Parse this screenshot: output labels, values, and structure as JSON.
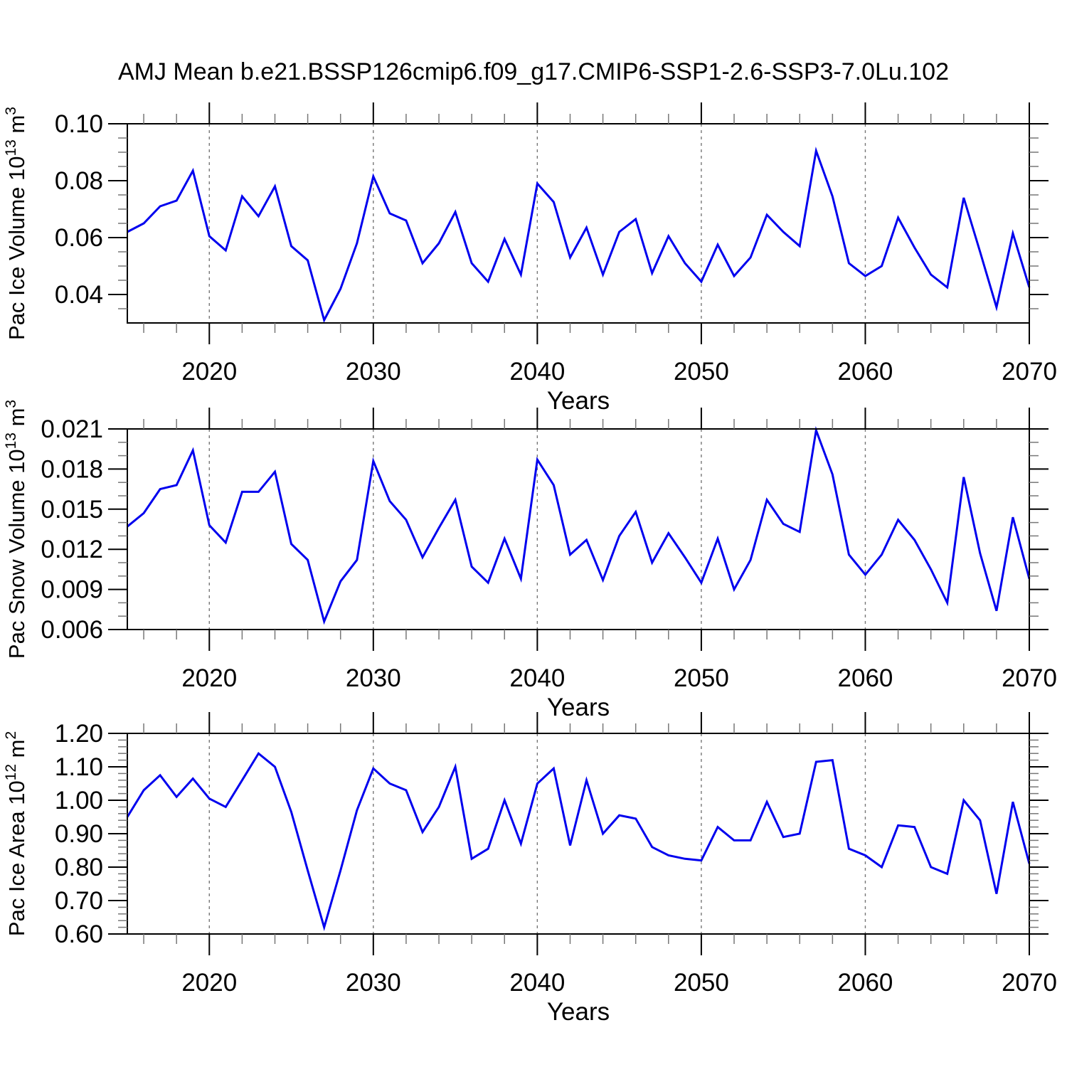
{
  "title": "AMJ Mean b.e21.BSSP126cmip6.f09_g17.CMIP6-SSP1-2.6-SSP3-7.0Lu.102",
  "style": {
    "line_color": "#0000ee",
    "frame_color": "#000000",
    "major_tick_color": "#000000",
    "minor_tick_color": "#777777",
    "gridline_color": "#777777",
    "background": "#ffffff"
  },
  "x_axis": {
    "label": "Years",
    "range": [
      2015,
      2070
    ],
    "major_ticks": [
      2020,
      2030,
      2040,
      2050,
      2060,
      2070
    ],
    "major_tick_labels": [
      "2020",
      "2030",
      "2040",
      "2050",
      "2060",
      "2070"
    ],
    "minor_tick_step": 2,
    "gridline_years": [
      2020,
      2030,
      2040,
      2050,
      2060
    ]
  },
  "chart_data": [
    {
      "type": "line",
      "id": "pac-ice-volume",
      "ylabel_text": "Pac Ice Volume 10^13 m^3",
      "ylabel_segments": [
        [
          "Pac Ice Volume 10",
          false
        ],
        [
          "13",
          true
        ],
        [
          " m",
          false
        ],
        [
          "3",
          true
        ]
      ],
      "xlabel": "Years",
      "x_range": [
        2015,
        2070
      ],
      "ylim": [
        0.03,
        0.1
      ],
      "ytick_values": [
        0.04,
        0.06,
        0.08,
        0.1
      ],
      "ytick_labels": [
        "0.04",
        "0.06",
        "0.08",
        "0.10"
      ],
      "y_minor_step": 0.005,
      "grid": "x-dashed",
      "legend": "none",
      "years": [
        2015,
        2016,
        2017,
        2018,
        2019,
        2020,
        2021,
        2022,
        2023,
        2024,
        2025,
        2026,
        2027,
        2028,
        2029,
        2030,
        2031,
        2032,
        2033,
        2034,
        2035,
        2036,
        2037,
        2038,
        2039,
        2040,
        2041,
        2042,
        2043,
        2044,
        2045,
        2046,
        2047,
        2048,
        2049,
        2050,
        2051,
        2052,
        2053,
        2054,
        2055,
        2056,
        2057,
        2058,
        2059,
        2060,
        2061,
        2062,
        2063,
        2064,
        2065,
        2066,
        2067,
        2068,
        2069,
        2070
      ],
      "values": [
        0.062,
        0.065,
        0.071,
        0.073,
        0.0835,
        0.0605,
        0.0555,
        0.0745,
        0.0675,
        0.078,
        0.057,
        0.052,
        0.031,
        0.042,
        0.058,
        0.0815,
        0.0685,
        0.066,
        0.051,
        0.058,
        0.069,
        0.051,
        0.0445,
        0.0595,
        0.047,
        0.079,
        0.0725,
        0.053,
        0.0635,
        0.047,
        0.062,
        0.0665,
        0.0475,
        0.0605,
        0.051,
        0.0445,
        0.0575,
        0.0465,
        0.053,
        0.068,
        0.062,
        0.057,
        0.0905,
        0.0745,
        0.051,
        0.0465,
        0.05,
        0.067,
        0.0565,
        0.047,
        0.0425,
        0.074,
        0.055,
        0.0355,
        0.0615,
        0.0425
      ]
    },
    {
      "type": "line",
      "id": "pac-snow-volume",
      "ylabel_text": "Pac Snow Volume 10^13 m^3",
      "ylabel_segments": [
        [
          "Pac Snow Volume 10",
          false
        ],
        [
          "13",
          true
        ],
        [
          " m",
          false
        ],
        [
          "3",
          true
        ]
      ],
      "xlabel": "Years",
      "x_range": [
        2015,
        2070
      ],
      "ylim": [
        0.006,
        0.021
      ],
      "ytick_values": [
        0.006,
        0.009,
        0.012,
        0.015,
        0.018,
        0.021
      ],
      "ytick_labels": [
        "0.006",
        "0.009",
        "0.012",
        "0.015",
        "0.018",
        "0.021"
      ],
      "y_minor_step": 0.001,
      "grid": "x-dashed",
      "legend": "none",
      "years": [
        2015,
        2016,
        2017,
        2018,
        2019,
        2020,
        2021,
        2022,
        2023,
        2024,
        2025,
        2026,
        2027,
        2028,
        2029,
        2030,
        2031,
        2032,
        2033,
        2034,
        2035,
        2036,
        2037,
        2038,
        2039,
        2040,
        2041,
        2042,
        2043,
        2044,
        2045,
        2046,
        2047,
        2048,
        2049,
        2050,
        2051,
        2052,
        2053,
        2054,
        2055,
        2056,
        2057,
        2058,
        2059,
        2060,
        2061,
        2062,
        2063,
        2064,
        2065,
        2066,
        2067,
        2068,
        2069,
        2070
      ],
      "values": [
        0.0137,
        0.0147,
        0.0165,
        0.0168,
        0.0194,
        0.0138,
        0.0125,
        0.0163,
        0.0163,
        0.0178,
        0.0124,
        0.0112,
        0.0066,
        0.0096,
        0.0112,
        0.0186,
        0.0156,
        0.0142,
        0.0114,
        0.0136,
        0.0157,
        0.0107,
        0.0095,
        0.0128,
        0.0098,
        0.0187,
        0.0168,
        0.0116,
        0.0127,
        0.0097,
        0.013,
        0.0148,
        0.011,
        0.0132,
        0.0114,
        0.0095,
        0.0128,
        0.009,
        0.0112,
        0.0157,
        0.0139,
        0.0133,
        0.0209,
        0.0176,
        0.0116,
        0.0101,
        0.0116,
        0.0142,
        0.0127,
        0.0105,
        0.008,
        0.0174,
        0.0117,
        0.0074,
        0.0144,
        0.0098
      ]
    },
    {
      "type": "line",
      "id": "pac-ice-area",
      "ylabel_text": "Pac Ice Area 10^12 m^2",
      "ylabel_segments": [
        [
          "Pac Ice Area 10",
          false
        ],
        [
          "12",
          true
        ],
        [
          " m",
          false
        ],
        [
          "2",
          true
        ]
      ],
      "xlabel": "Years",
      "x_range": [
        2015,
        2070
      ],
      "ylim": [
        0.6,
        1.2
      ],
      "ytick_values": [
        0.6,
        0.7,
        0.8,
        0.9,
        1.0,
        1.1,
        1.2
      ],
      "ytick_labels": [
        "0.60",
        "0.70",
        "0.80",
        "0.90",
        "1.00",
        "1.10",
        "1.20"
      ],
      "y_minor_step": 0.02,
      "grid": "x-dashed",
      "legend": "none",
      "years": [
        2015,
        2016,
        2017,
        2018,
        2019,
        2020,
        2021,
        2022,
        2023,
        2024,
        2025,
        2026,
        2027,
        2028,
        2029,
        2030,
        2031,
        2032,
        2033,
        2034,
        2035,
        2036,
        2037,
        2038,
        2039,
        2040,
        2041,
        2042,
        2043,
        2044,
        2045,
        2046,
        2047,
        2048,
        2049,
        2050,
        2051,
        2052,
        2053,
        2054,
        2055,
        2056,
        2057,
        2058,
        2059,
        2060,
        2061,
        2062,
        2063,
        2064,
        2065,
        2066,
        2067,
        2068,
        2069,
        2070
      ],
      "values": [
        0.95,
        1.03,
        1.075,
        1.01,
        1.065,
        1.005,
        0.98,
        1.06,
        1.14,
        1.1,
        0.965,
        0.79,
        0.62,
        0.79,
        0.97,
        1.095,
        1.05,
        1.03,
        0.905,
        0.98,
        1.1,
        0.825,
        0.855,
        1.0,
        0.87,
        1.05,
        1.095,
        0.865,
        1.06,
        0.9,
        0.955,
        0.945,
        0.86,
        0.835,
        0.825,
        0.82,
        0.92,
        0.88,
        0.88,
        0.995,
        0.89,
        0.9,
        1.115,
        1.12,
        0.855,
        0.835,
        0.8,
        0.925,
        0.92,
        0.8,
        0.78,
        1.0,
        0.94,
        0.72,
        0.995,
        0.81
      ]
    }
  ]
}
